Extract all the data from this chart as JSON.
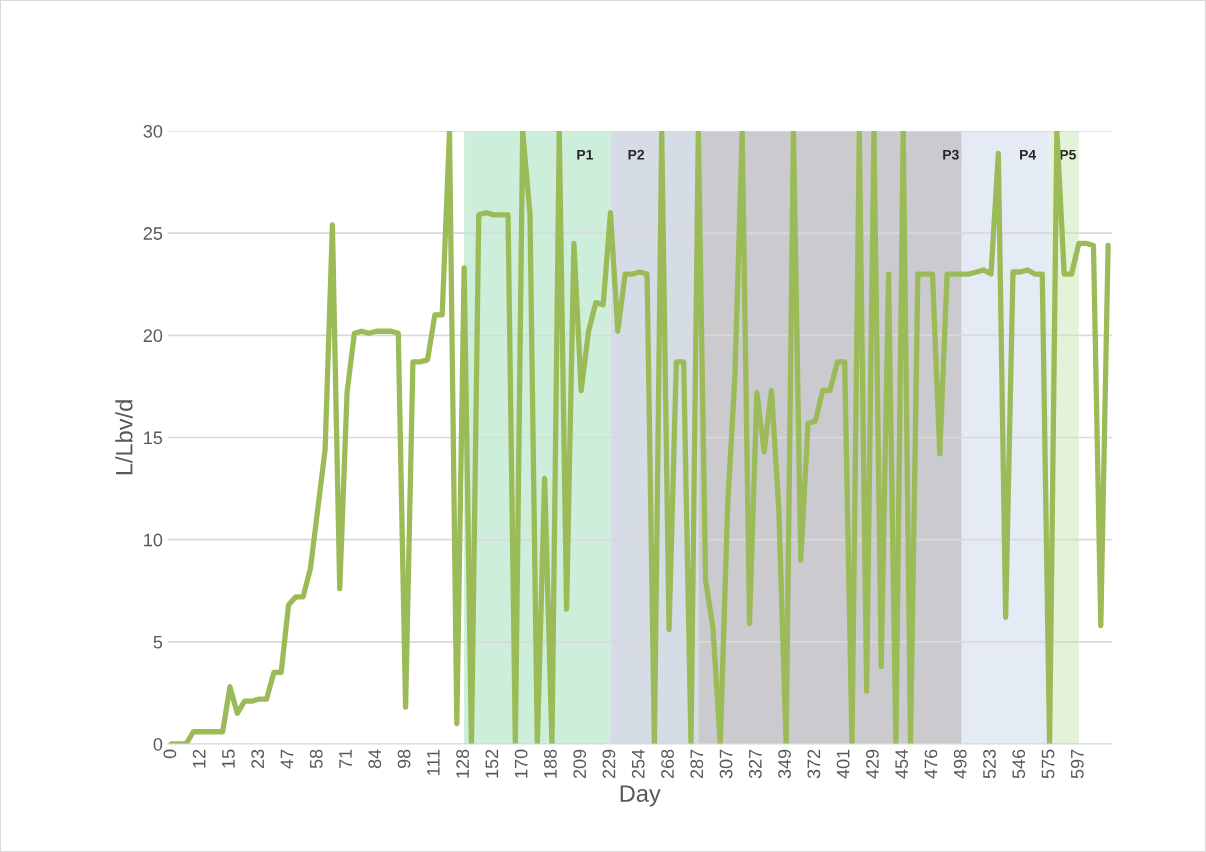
{
  "chart_data": {
    "type": "line",
    "xlabel": "Day",
    "ylabel": "L/Lbv/d",
    "categories": [
      "0",
      null,
      null,
      null,
      "12",
      null,
      null,
      null,
      "15",
      null,
      null,
      null,
      "23",
      null,
      null,
      null,
      "47",
      null,
      null,
      null,
      "58",
      null,
      null,
      null,
      "71",
      null,
      null,
      null,
      "84",
      null,
      null,
      null,
      "98",
      null,
      null,
      null,
      "111",
      null,
      null,
      null,
      "128",
      null,
      null,
      null,
      "152",
      null,
      null,
      null,
      "170",
      null,
      null,
      null,
      "188",
      null,
      null,
      null,
      "209",
      null,
      null,
      null,
      "229",
      null,
      null,
      null,
      "254",
      null,
      null,
      null,
      "268",
      null,
      null,
      null,
      "287",
      null,
      null,
      null,
      "307",
      null,
      null,
      null,
      "327",
      null,
      null,
      null,
      "349",
      null,
      null,
      null,
      "372",
      null,
      null,
      null,
      "401",
      null,
      null,
      null,
      "429",
      null,
      null,
      null,
      "454",
      null,
      null,
      null,
      "476",
      null,
      null,
      null,
      "498",
      null,
      null,
      null,
      "523",
      null,
      null,
      null,
      "546",
      null,
      null,
      null,
      "575",
      null,
      null,
      null,
      "597",
      null,
      null,
      null,
      null
    ],
    "series": [
      {
        "color": "#9bbb59",
        "values": [
          0,
          0,
          0,
          0.6,
          0.6,
          0.6,
          0.6,
          0.6,
          2.8,
          1.5,
          2.1,
          2.1,
          2.2,
          2.2,
          3.5,
          3.5,
          6.8,
          7.2,
          7.2,
          8.6,
          11.5,
          14.4,
          25.4,
          7.6,
          17.2,
          20.1,
          20.2,
          20.1,
          20.2,
          20.2,
          20.2,
          20.1,
          1.8,
          18.7,
          18.7,
          18.8,
          21,
          21,
          30,
          1,
          23.3,
          0,
          25.9,
          26,
          25.9,
          25.9,
          25.9,
          0,
          30,
          25.9,
          0,
          13,
          0,
          30,
          6.6,
          24.5,
          17.3,
          20.2,
          21.6,
          21.5,
          26,
          20.2,
          23,
          23,
          23.1,
          23,
          0,
          30,
          5.6,
          18.7,
          18.7,
          0,
          30,
          8,
          5.7,
          0,
          11.6,
          18,
          30,
          5.9,
          17.2,
          14.3,
          17.3,
          11.5,
          0,
          30,
          9,
          15.7,
          15.8,
          17.3,
          17.3,
          18.7,
          18.7,
          0,
          30,
          2.6,
          30,
          3.8,
          23,
          0,
          30,
          0,
          23,
          23,
          23,
          14.2,
          23,
          23,
          23,
          23,
          23.1,
          23.2,
          23,
          28.9,
          6.2,
          23.1,
          23.1,
          23.2,
          23,
          23,
          0,
          30,
          23,
          23,
          24.5,
          24.5,
          24.4,
          5.8,
          24.4
        ]
      }
    ],
    "ylim": [
      0,
      30
    ],
    "yticks": [
      0,
      5,
      10,
      15,
      20,
      25,
      30
    ],
    "grid": "y",
    "legend": false,
    "marker": "none",
    "line_style": "solid",
    "bands": [
      {
        "axis": "x",
        "from": "128",
        "to": "229",
        "label": "P1",
        "color": "#cdeedb"
      },
      {
        "axis": "x",
        "from": "229",
        "to": "287",
        "label": "P2",
        "color": "#d6dce5"
      },
      {
        "axis": "x",
        "from": "287",
        "to": "498",
        "label": "P3",
        "color": "#cbcbcf"
      },
      {
        "axis": "x",
        "from": "498",
        "to": "575",
        "label": "P4",
        "color": "#e4ebf5"
      },
      {
        "axis": "x",
        "from": "575",
        "to": "597",
        "label": "P5",
        "color": "#e3f2d9"
      }
    ]
  }
}
